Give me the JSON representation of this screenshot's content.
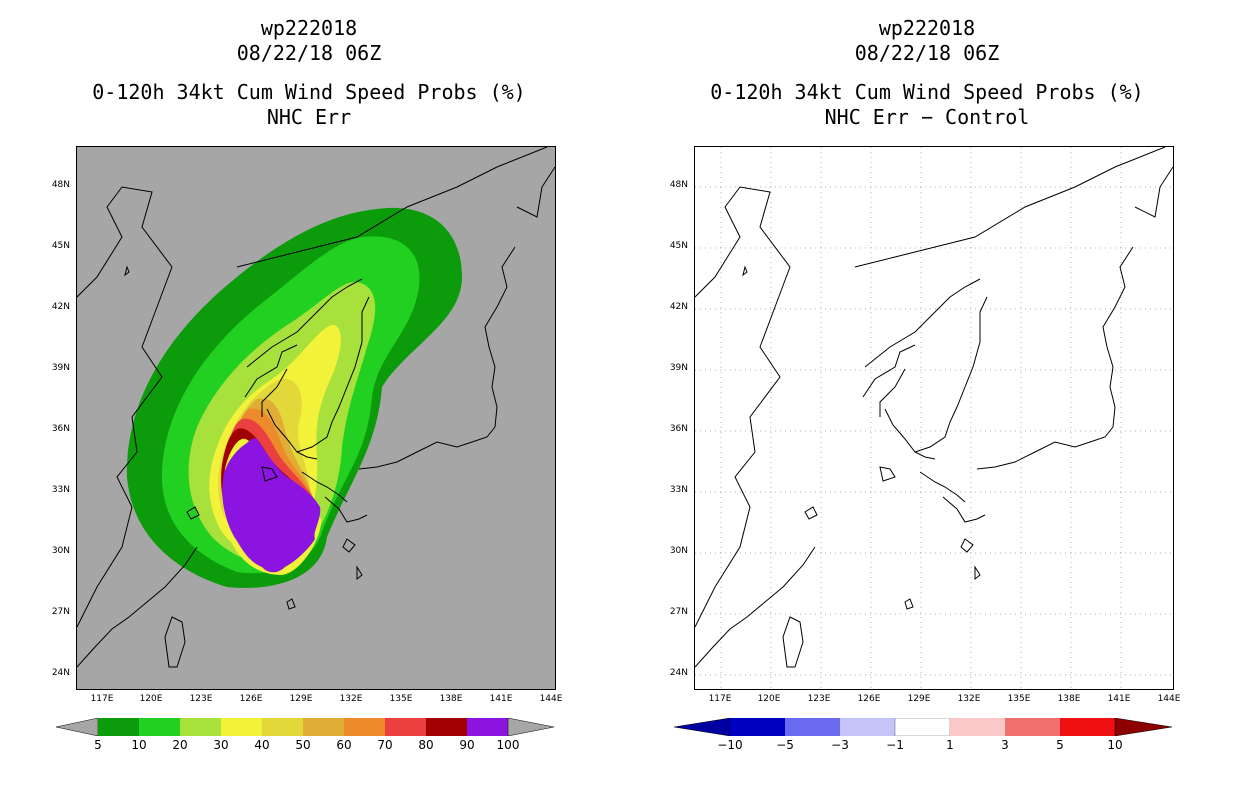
{
  "panels": [
    {
      "title_storm": "wp222018",
      "title_date": "08/22/18 06Z",
      "title_product": "0-120h 34kt Cum Wind Speed Probs (%)",
      "title_case": "NHC Err",
      "background_color": "#a6a6a6",
      "colorbar": {
        "labels": [
          "5",
          "10",
          "20",
          "30",
          "40",
          "50",
          "60",
          "70",
          "80",
          "90",
          "100"
        ],
        "colors": [
          "#0b9b0b",
          "#22d022",
          "#a8e03c",
          "#f2f23a",
          "#e2d83a",
          "#e0ad35",
          "#ec8a2c",
          "#ea4040",
          "#a00000",
          "#8c14e0"
        ]
      }
    },
    {
      "title_storm": "wp222018",
      "title_date": "08/22/18 06Z",
      "title_product": "0-120h 34kt Cum Wind Speed Probs (%)",
      "title_case": "NHC Err − Control",
      "background_color": "#ffffff",
      "colorbar": {
        "labels": [
          "−10",
          "−5",
          "−3",
          "−1",
          "1",
          "3",
          "5",
          "10"
        ],
        "colors": [
          "#0000c0",
          "#6a6aee",
          "#c4c4fa",
          "#ffffff",
          "#fac8c8",
          "#f07070",
          "#ee1010",
          "#8c0000"
        ]
      }
    }
  ],
  "lat_labels": [
    "48N",
    "45N",
    "42N",
    "39N",
    "36N",
    "33N",
    "30N",
    "27N",
    "24N"
  ],
  "lon_labels": [
    "117E",
    "120E",
    "123E",
    "126E",
    "129E",
    "132E",
    "135E",
    "138E",
    "141E",
    "144E"
  ]
}
